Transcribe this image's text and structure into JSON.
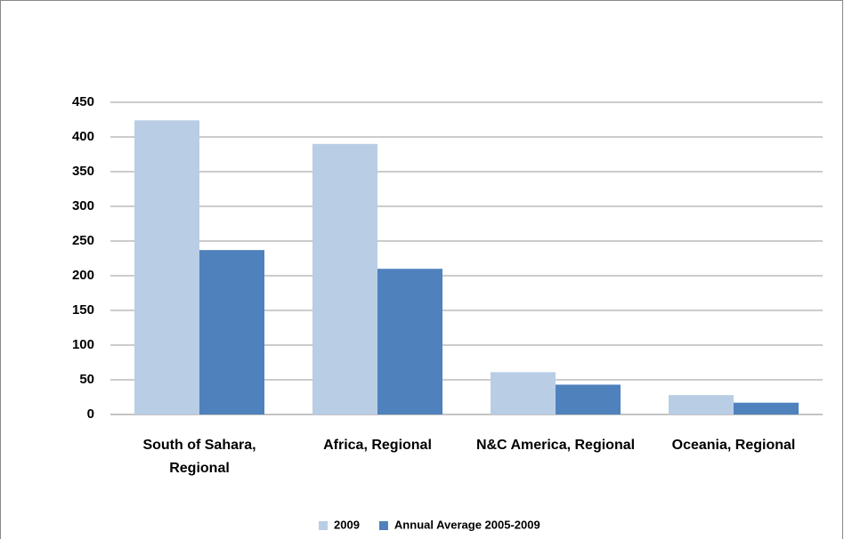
{
  "chart_data": {
    "type": "bar",
    "categories": [
      "South of Sahara, Regional",
      "Africa, Regional",
      "N&C America, Regional",
      "Oceania, Regional"
    ],
    "series": [
      {
        "name": "2009",
        "color": "#b9cde5",
        "values": [
          424,
          390,
          61,
          28
        ]
      },
      {
        "name": "Annual Average 2005-2009",
        "color": "#4f81bd",
        "values": [
          237,
          210,
          43,
          17
        ]
      }
    ],
    "ylim": [
      0,
      450
    ],
    "yticks": [
      0,
      50,
      100,
      150,
      200,
      250,
      300,
      350,
      400,
      450
    ],
    "grid": true,
    "legend": "bottom"
  }
}
